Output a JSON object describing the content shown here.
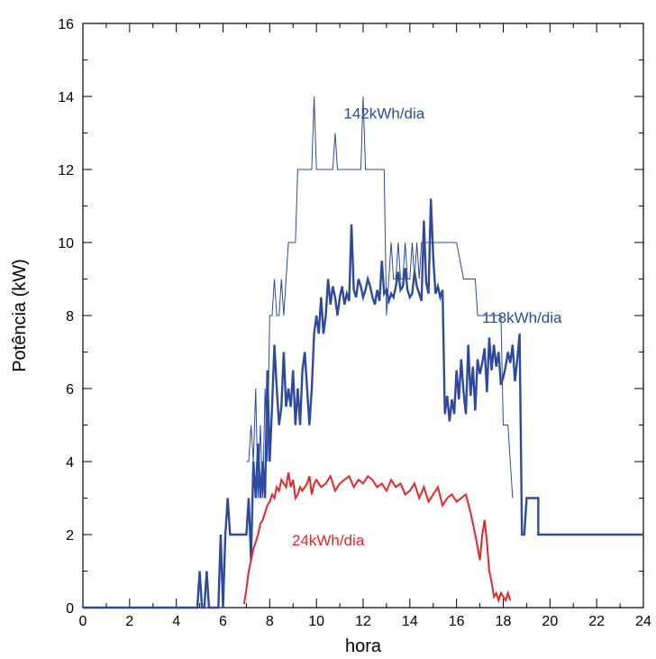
{
  "chart_data": {
    "type": "line",
    "xlabel": "hora",
    "ylabel": "Potência (kW)",
    "xlim": [
      0,
      24
    ],
    "ylim": [
      0,
      16
    ],
    "xticks": [
      "0",
      "2",
      "4",
      "6",
      "8",
      "10",
      "12",
      "14",
      "16",
      "18",
      "20",
      "22",
      "24"
    ],
    "yticks": [
      "0",
      "2",
      "4",
      "6",
      "8",
      "10",
      "12",
      "14",
      "16"
    ],
    "grid": false,
    "colors": {
      "thin_blue": "#2a4aa8",
      "thick_blue": "#2e4a9e",
      "red": "#e8262a"
    },
    "annotations": [
      {
        "text": "142kWh/dia",
        "x": 12.9,
        "y": 13.4,
        "color": "#2a4aa8"
      },
      {
        "text": "118kWh/dia",
        "x": 18.8,
        "y": 7.8,
        "color": "#2e4a9e"
      },
      {
        "text": "24kWh/dia",
        "x": 10.5,
        "y": 1.7,
        "color": "#e8262a"
      }
    ],
    "series": [
      {
        "style": "thin",
        "color": "#2a4aa8",
        "x": [
          7.0,
          7.1,
          7.2,
          7.3,
          7.4,
          7.5,
          7.6,
          7.7,
          7.8,
          7.9,
          8.0,
          8.1,
          8.2,
          8.3,
          8.4,
          8.5,
          8.6,
          8.7,
          8.8,
          8.9,
          9.0,
          9.1,
          9.2,
          9.4,
          9.6,
          9.8,
          9.9,
          10.0,
          10.1,
          10.4,
          10.7,
          10.8,
          10.9,
          11.0,
          11.4,
          11.7,
          11.9,
          12.0,
          12.1,
          12.2,
          12.3,
          12.4,
          12.6,
          12.9,
          13.0,
          13.1,
          13.2,
          13.3,
          13.4,
          13.5,
          13.6,
          13.7,
          13.8,
          13.9,
          14.0,
          14.1,
          14.2,
          14.3,
          14.4,
          14.5,
          14.6,
          14.7,
          14.8,
          14.9,
          15.0,
          15.5,
          16.0,
          16.3,
          16.5,
          16.6,
          16.8,
          16.9,
          17.0,
          17.2,
          17.5,
          17.7,
          17.9,
          18.0,
          18.1,
          18.2,
          18.3,
          18.4
        ],
        "y": [
          4,
          4,
          5,
          4,
          6,
          3,
          5,
          3,
          6,
          4,
          8,
          8,
          9,
          8,
          8,
          9,
          8,
          9,
          10,
          10,
          10,
          10,
          12,
          12,
          12,
          12,
          14,
          12,
          12,
          12,
          12,
          13,
          12,
          12,
          12,
          12,
          12,
          14,
          12,
          12,
          12,
          12,
          12,
          12,
          8,
          9,
          10,
          9,
          9,
          10,
          9,
          9,
          10,
          9,
          9,
          10,
          9,
          10,
          9,
          10,
          10,
          10,
          10,
          10,
          10,
          10,
          10,
          9,
          9,
          9,
          9,
          8,
          8,
          8,
          8,
          8,
          8,
          5,
          5,
          5,
          4,
          3
        ]
      },
      {
        "style": "thick",
        "color": "#2e4a9e",
        "x": [
          0,
          4.9,
          5.0,
          5.1,
          5.2,
          5.3,
          5.4,
          5.8,
          5.9,
          6.0,
          6.1,
          6.2,
          6.3,
          6.5,
          6.7,
          7.0,
          7.1,
          7.2,
          7.3,
          7.4,
          7.5,
          7.6,
          7.7,
          7.8,
          7.9,
          8.0,
          8.1,
          8.2,
          8.3,
          8.4,
          8.5,
          8.6,
          8.7,
          8.8,
          8.9,
          9.0,
          9.1,
          9.2,
          9.3,
          9.4,
          9.5,
          9.6,
          9.7,
          9.8,
          9.9,
          10.0,
          10.1,
          10.2,
          10.3,
          10.4,
          10.5,
          10.6,
          10.7,
          10.8,
          10.9,
          11.0,
          11.1,
          11.2,
          11.3,
          11.4,
          11.5,
          11.6,
          11.7,
          11.8,
          11.9,
          12.0,
          12.1,
          12.2,
          12.3,
          12.4,
          12.5,
          12.6,
          12.7,
          12.8,
          12.9,
          13.0,
          13.1,
          13.2,
          13.3,
          13.4,
          13.5,
          13.6,
          13.7,
          13.8,
          13.9,
          14.0,
          14.1,
          14.2,
          14.3,
          14.4,
          14.5,
          14.6,
          14.7,
          14.8,
          14.9,
          15.0,
          15.1,
          15.2,
          15.3,
          15.4,
          15.5,
          15.6,
          15.7,
          15.8,
          15.9,
          16.0,
          16.1,
          16.2,
          16.3,
          16.4,
          16.5,
          16.6,
          16.7,
          16.8,
          16.9,
          17.0,
          17.1,
          17.2,
          17.3,
          17.4,
          17.5,
          17.6,
          17.7,
          17.8,
          17.9,
          18.0,
          18.1,
          18.2,
          18.3,
          18.4,
          18.5,
          18.6,
          18.7,
          18.8,
          18.9,
          19.0,
          19.5,
          19.5,
          24
        ],
        "y": [
          0,
          0,
          1,
          0,
          0,
          1,
          0,
          0,
          2,
          0,
          2,
          3,
          2,
          2,
          2,
          2,
          3,
          1.3,
          4,
          3,
          4.5,
          3,
          4,
          3,
          6.5,
          4,
          5.5,
          7.2,
          6,
          5,
          5.5,
          7,
          5.5,
          6,
          5.5,
          6.5,
          5,
          6,
          5,
          6.5,
          7,
          6,
          5,
          6,
          7.5,
          8,
          7.5,
          8.5,
          7.5,
          8,
          9,
          8.3,
          8.8,
          8.5,
          8,
          8.5,
          8.8,
          8.3,
          8.6,
          8.4,
          10.5,
          8.7,
          8.5,
          9,
          8.8,
          8.5,
          8.7,
          9,
          8.8,
          8.5,
          8.3,
          8.7,
          8.4,
          9.5,
          8.6,
          8.7,
          8.4,
          8.6,
          8.5,
          8.8,
          9.2,
          8.7,
          8.8,
          9.3,
          8.7,
          8.5,
          8.6,
          9.2,
          8.8,
          8.6,
          8.4,
          10.6,
          8.9,
          8.6,
          11.2,
          9.6,
          8.6,
          8.8,
          8.5,
          8.7,
          5.3,
          5.8,
          5.1,
          5.7,
          5.3,
          6.5,
          5.7,
          6.8,
          5.9,
          5.3,
          7.2,
          5.8,
          6.6,
          5.4,
          6.8,
          6.4,
          6.7,
          7.1,
          5.9,
          7.4,
          6.5,
          7.2,
          6.6,
          7.0,
          6.1,
          6.3,
          6.6,
          7.0,
          6.7,
          7.2,
          6.2,
          6.8,
          7.5,
          2.0,
          2.0,
          3.0,
          3.0,
          2.0,
          2.0
        ]
      },
      {
        "style": "medium",
        "color": "#e8262a",
        "x": [
          6.9,
          7.0,
          7.1,
          7.2,
          7.3,
          7.4,
          7.5,
          7.6,
          7.7,
          7.8,
          7.9,
          8.0,
          8.1,
          8.2,
          8.3,
          8.4,
          8.5,
          8.6,
          8.7,
          8.8,
          8.9,
          9.0,
          9.1,
          9.2,
          9.3,
          9.4,
          9.5,
          9.6,
          9.7,
          9.8,
          9.9,
          10.0,
          10.2,
          10.4,
          10.6,
          10.8,
          11.0,
          11.2,
          11.4,
          11.6,
          11.8,
          12.0,
          12.2,
          12.4,
          12.6,
          12.8,
          13.0,
          13.2,
          13.4,
          13.6,
          13.8,
          14.0,
          14.2,
          14.4,
          14.6,
          14.8,
          15.0,
          15.2,
          15.4,
          15.6,
          15.8,
          16.0,
          16.2,
          16.4,
          16.6,
          16.8,
          17.0,
          17.1,
          17.2,
          17.3,
          17.4,
          17.5,
          17.6,
          17.7,
          17.8,
          17.9,
          18.0,
          18.1,
          18.2,
          18.3
        ],
        "y": [
          0.1,
          0.5,
          1.0,
          1.3,
          1.6,
          1.8,
          2.0,
          2.3,
          2.4,
          2.6,
          2.8,
          2.9,
          3.1,
          3.0,
          3.3,
          3.2,
          3.5,
          3.4,
          3.3,
          3.7,
          3.3,
          3.5,
          3.0,
          3.1,
          3.3,
          3.2,
          3.3,
          3.4,
          3.6,
          3.1,
          3.4,
          3.5,
          3.3,
          3.4,
          3.6,
          3.2,
          3.4,
          3.5,
          3.6,
          3.3,
          3.5,
          3.4,
          3.6,
          3.5,
          3.3,
          3.4,
          3.2,
          3.5,
          3.3,
          3.4,
          3.1,
          3.2,
          3.4,
          3.0,
          3.3,
          2.9,
          3.1,
          3.3,
          2.8,
          3.0,
          3.1,
          2.9,
          3.0,
          3.1,
          2.6,
          2.0,
          1.3,
          2.0,
          2.4,
          1.8,
          1.0,
          0.7,
          0.3,
          0.4,
          0.2,
          0.4,
          0.3,
          0.2,
          0.4,
          0.2
        ]
      }
    ]
  }
}
